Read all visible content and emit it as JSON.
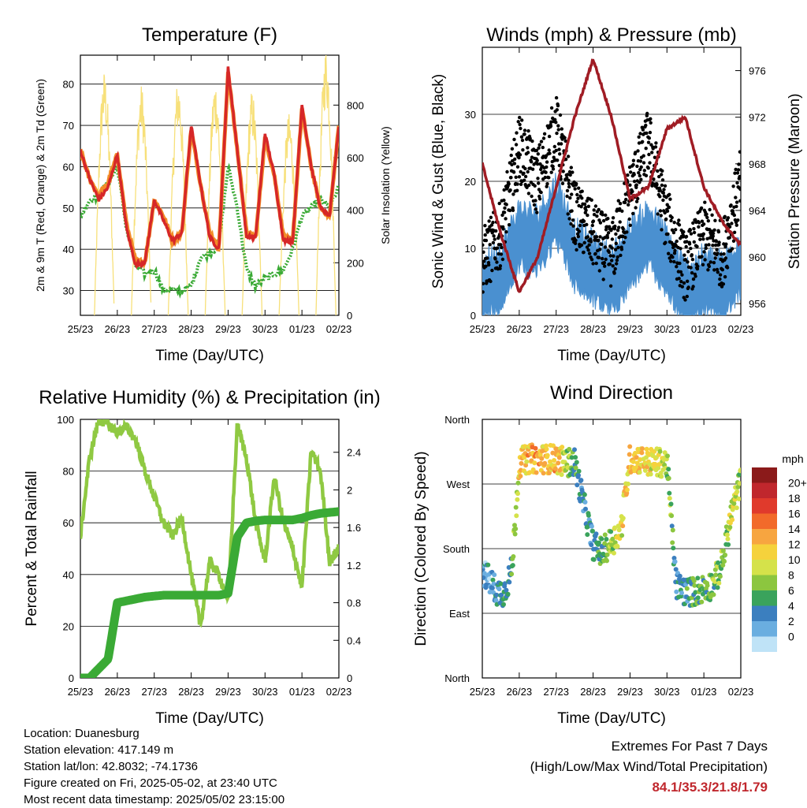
{
  "xticks": [
    "25/23",
    "26/23",
    "27/23",
    "28/23",
    "29/23",
    "30/23",
    "01/23",
    "02/23"
  ],
  "xlabel": "Time (Day/UTC)",
  "info": {
    "location": "Location: Duanesburg",
    "elevation": "Station elevation: 417.149 m",
    "latlon": "Station lat/lon: 42.8032; -74.1736",
    "created": "Figure created on Fri, 2025-05-02, at 23:40 UTC",
    "recent": "Most recent data timestamp: 2025/05/02 23:15:00"
  },
  "extremes": {
    "title": "Extremes For Past 7 Days",
    "subtitle": "(High/Low/Max Wind/Total Precipitation)",
    "values": "84.1/35.3/21.8/1.79"
  },
  "colors": {
    "temp2m": "#d62728",
    "temp9m": "#f28c28",
    "dewpoint": "#3aaa35",
    "solar": "#f7e07a",
    "wind": "#4a90d0",
    "gust": "#000000",
    "pressure": "#a01c24",
    "rh": "#8fc942",
    "precip": "#3aaa35"
  },
  "chart_data": [
    {
      "type": "line",
      "title": "Temperature (F)",
      "xlabel": "Time (Day/UTC)",
      "ylabel": "2m & 9m T (Red, Orange) & 2m Td (Green)",
      "ylabel_right": "Solar Insolation (Yellow)",
      "ylim": [
        24,
        87
      ],
      "yticks": [
        30,
        40,
        50,
        60,
        70,
        80
      ],
      "ylim_right": [
        0,
        990
      ],
      "yticks_right": [
        0,
        200,
        400,
        600,
        800
      ],
      "x": [
        0,
        0.25,
        0.5,
        0.75,
        1.0,
        1.25,
        1.5,
        1.75,
        2.0,
        2.25,
        2.5,
        2.75,
        3.0,
        3.25,
        3.5,
        3.75,
        4.0,
        4.25,
        4.5,
        4.75,
        5.0,
        5.25,
        5.5,
        5.75,
        6.0,
        6.25,
        6.5,
        6.75,
        7.0
      ],
      "series": [
        {
          "name": "2m T",
          "values": [
            64,
            57,
            52,
            55,
            63,
            45,
            36,
            37,
            52,
            47,
            42,
            44,
            70,
            56,
            43,
            40,
            84,
            64,
            43,
            43,
            68,
            58,
            42,
            42,
            75,
            60,
            50,
            48,
            70
          ]
        },
        {
          "name": "9m T",
          "values": [
            64,
            57,
            53,
            56,
            63,
            46,
            37,
            37,
            52,
            48,
            42,
            44,
            69,
            56,
            44,
            40,
            83,
            64,
            44,
            43,
            67,
            58,
            43,
            42,
            74,
            60,
            50,
            48,
            70
          ]
        },
        {
          "name": "2m Td",
          "values": [
            48,
            52,
            53,
            56,
            60,
            45,
            36,
            34,
            35,
            30,
            30,
            30,
            31,
            38,
            39,
            41,
            60,
            50,
            35,
            31,
            33,
            34,
            35,
            40,
            48,
            50,
            52,
            50,
            55
          ]
        }
      ],
      "solar_days": [
        1,
        2,
        3,
        4,
        5,
        6,
        7
      ],
      "solar_peak": [
        850,
        800,
        820,
        820,
        780,
        700,
        930
      ]
    },
    {
      "type": "scatter",
      "title": "Winds (mph) & Pressure (mb)",
      "xlabel": "Time (Day/UTC)",
      "ylabel": "Sonic Wind & Gust (Blue, Black)",
      "ylabel_right": "Station Pressure (Maroon)",
      "ylim": [
        0,
        40
      ],
      "yticks": [
        0,
        10,
        20,
        30
      ],
      "ylim_right": [
        955,
        978
      ],
      "yticks_right": [
        956,
        960,
        964,
        968,
        972,
        976
      ],
      "x": [
        0,
        0.5,
        1.0,
        1.5,
        2.0,
        2.5,
        3.0,
        3.5,
        4.0,
        4.5,
        5.0,
        5.5,
        6.0,
        6.5,
        7.0
      ],
      "series": [
        {
          "name": "Sonic Wind",
          "values": [
            4,
            6,
            12,
            11,
            16,
            9,
            7,
            5,
            9,
            12,
            8,
            3,
            5,
            4,
            8
          ]
        },
        {
          "name": "Gust",
          "values": [
            8,
            12,
            25,
            20,
            28,
            15,
            12,
            9,
            18,
            26,
            14,
            7,
            12,
            9,
            20
          ]
        },
        {
          "name": "Station Pressure",
          "values": [
            968,
            962,
            957,
            960,
            966,
            972,
            977,
            972,
            965,
            966,
            971,
            972,
            966,
            963,
            961
          ]
        }
      ]
    },
    {
      "type": "line",
      "title": "Relative Humidity (%) & Precipitation (in)",
      "xlabel": "Time (Day/UTC)",
      "ylabel": "Percent & Total Rainfall",
      "ylim": [
        0,
        100
      ],
      "yticks": [
        0,
        20,
        40,
        60,
        80,
        100
      ],
      "ylim_right": [
        0,
        2.75
      ],
      "yticks_right": [
        0.0,
        0.4,
        0.8,
        1.2,
        1.6,
        2.0,
        2.4
      ],
      "x": [
        0,
        0.25,
        0.5,
        0.75,
        1.0,
        1.25,
        1.5,
        1.75,
        2.0,
        2.25,
        2.5,
        2.75,
        3.0,
        3.25,
        3.5,
        3.75,
        4.0,
        4.25,
        4.5,
        4.75,
        5.0,
        5.25,
        5.5,
        5.75,
        6.0,
        6.25,
        6.5,
        6.75,
        7.0
      ],
      "series": [
        {
          "name": "RH",
          "values": [
            55,
            85,
            100,
            98,
            95,
            97,
            92,
            80,
            70,
            60,
            55,
            62,
            40,
            20,
            45,
            40,
            30,
            98,
            85,
            60,
            45,
            78,
            60,
            50,
            35,
            88,
            80,
            45,
            50
          ]
        },
        {
          "name": "Precip",
          "values": [
            0.0,
            0.0,
            0.1,
            0.2,
            0.8,
            0.82,
            0.84,
            0.86,
            0.87,
            0.88,
            0.88,
            0.88,
            0.88,
            0.88,
            0.88,
            0.88,
            0.9,
            1.5,
            1.65,
            1.67,
            1.68,
            1.68,
            1.68,
            1.68,
            1.7,
            1.73,
            1.75,
            1.76,
            1.77
          ]
        }
      ]
    },
    {
      "type": "scatter",
      "title": "Wind Direction",
      "xlabel": "Time (Day/UTC)",
      "ylabel": "Direction (Colored By Speed)",
      "yticks": [
        "North",
        "East",
        "South",
        "West",
        "North"
      ],
      "colorbar": {
        "unit": "mph",
        "labels": [
          "20+",
          "18",
          "16",
          "14",
          "12",
          "10",
          "8",
          "6",
          "4",
          "2",
          "0"
        ],
        "colors": [
          "#8b1a1a",
          "#c0272d",
          "#e03a2c",
          "#f26a2a",
          "#f7a540",
          "#f5d23c",
          "#d5e24a",
          "#8cc63f",
          "#3aa35c",
          "#3b7fbf",
          "#6aaee0",
          "#bfe3f7"
        ]
      },
      "x": [
        0,
        0.2,
        0.4,
        0.6,
        0.8,
        1.0,
        1.25,
        1.5,
        1.75,
        2.0,
        2.25,
        2.5,
        2.75,
        3.0,
        3.25,
        3.5,
        3.75,
        4.0,
        4.25,
        4.5,
        4.75,
        5.0,
        5.25,
        5.5,
        5.75,
        6.0,
        6.25,
        6.5,
        6.75,
        7.0
      ],
      "directions": [
        150,
        135,
        120,
        120,
        150,
        300,
        305,
        305,
        305,
        305,
        300,
        300,
        240,
        185,
        175,
        190,
        205,
        305,
        305,
        300,
        300,
        300,
        130,
        120,
        120,
        125,
        130,
        160,
        230,
        275
      ],
      "speeds": [
        3,
        3,
        4,
        5,
        6,
        12,
        13,
        14,
        12,
        13,
        10,
        6,
        4,
        5,
        6,
        9,
        11,
        13,
        12,
        12,
        10,
        9,
        4,
        5,
        6,
        6,
        7,
        8,
        10,
        8
      ]
    }
  ]
}
